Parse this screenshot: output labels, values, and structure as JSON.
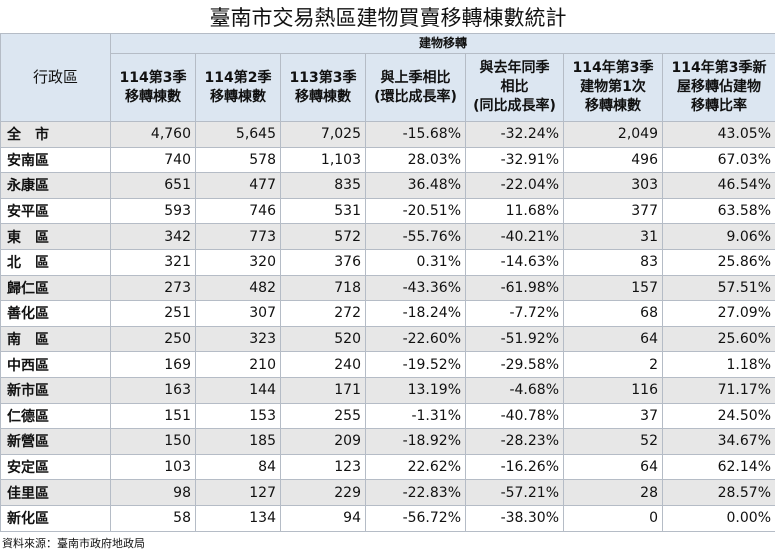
{
  "title": "臺南市交易熱區建物買賣移轉棟數統計",
  "table": {
    "district_header": "行政區",
    "group_header": "建物移轉",
    "columns": [
      "114第3季\n移轉棟數",
      "114第2季\n移轉棟數",
      "113第3季\n移轉棟數",
      "與上季相比\n(環比成長率)",
      "與去年同季\n相比\n(同比成長率)",
      "114年第3季\n建物第1次\n移轉棟數",
      "114年第3季新\n屋移轉佔建物\n移轉比率"
    ],
    "rows": [
      [
        "全　市",
        "4,760",
        "5,645",
        "7,025",
        "-15.68%",
        "-32.24%",
        "2,049",
        "43.05%"
      ],
      [
        "安南區",
        "740",
        "578",
        "1,103",
        "28.03%",
        "-32.91%",
        "496",
        "67.03%"
      ],
      [
        "永康區",
        "651",
        "477",
        "835",
        "36.48%",
        "-22.04%",
        "303",
        "46.54%"
      ],
      [
        "安平區",
        "593",
        "746",
        "531",
        "-20.51%",
        "11.68%",
        "377",
        "63.58%"
      ],
      [
        "東　區",
        "342",
        "773",
        "572",
        "-55.76%",
        "-40.21%",
        "31",
        "9.06%"
      ],
      [
        "北　區",
        "321",
        "320",
        "376",
        "0.31%",
        "-14.63%",
        "83",
        "25.86%"
      ],
      [
        "歸仁區",
        "273",
        "482",
        "718",
        "-43.36%",
        "-61.98%",
        "157",
        "57.51%"
      ],
      [
        "善化區",
        "251",
        "307",
        "272",
        "-18.24%",
        "-7.72%",
        "68",
        "27.09%"
      ],
      [
        "南　區",
        "250",
        "323",
        "520",
        "-22.60%",
        "-51.92%",
        "64",
        "25.60%"
      ],
      [
        "中西區",
        "169",
        "210",
        "240",
        "-19.52%",
        "-29.58%",
        "2",
        "1.18%"
      ],
      [
        "新市區",
        "163",
        "144",
        "171",
        "13.19%",
        "-4.68%",
        "116",
        "71.17%"
      ],
      [
        "仁德區",
        "151",
        "153",
        "255",
        "-1.31%",
        "-40.78%",
        "37",
        "24.50%"
      ],
      [
        "新營區",
        "150",
        "185",
        "209",
        "-18.92%",
        "-28.23%",
        "52",
        "34.67%"
      ],
      [
        "安定區",
        "103",
        "84",
        "123",
        "22.62%",
        "-16.26%",
        "64",
        "62.14%"
      ],
      [
        "佳里區",
        "98",
        "127",
        "229",
        "-22.83%",
        "-57.21%",
        "28",
        "28.57%"
      ],
      [
        "新化區",
        "58",
        "134",
        "94",
        "-56.72%",
        "-38.30%",
        "0",
        "0.00%"
      ]
    ]
  },
  "source": "資料來源：臺南市政府地政局"
}
